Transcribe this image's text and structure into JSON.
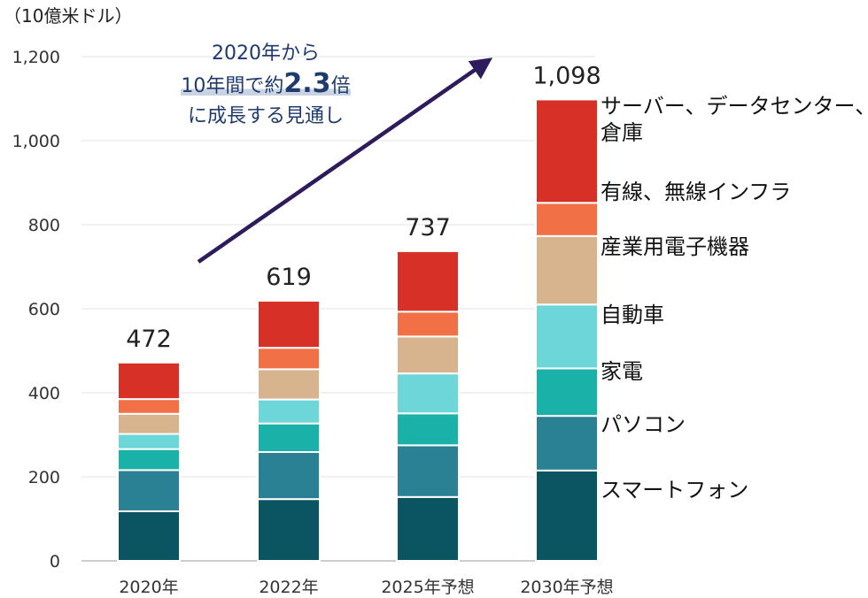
{
  "chart_data": {
    "type": "bar",
    "stacked": true,
    "unit_label": "（10億米ドル）",
    "categories": [
      "2020年",
      "2022年",
      "2025年予想",
      "2030年予想"
    ],
    "totals": [
      472,
      619,
      737,
      1098
    ],
    "total_labels": [
      "472",
      "619",
      "737",
      "1,098"
    ],
    "ylim": [
      0,
      1200
    ],
    "yticks": [
      0,
      200,
      400,
      600,
      800,
      1000,
      1200
    ],
    "ytick_labels": [
      "0",
      "200",
      "400",
      "600",
      "800",
      "1,000",
      "1,200"
    ],
    "grid": true,
    "legend_placement": "right",
    "series": [
      {
        "name": "スマートフォン",
        "color": "#0b5563",
        "values": [
          118,
          147,
          152,
          215
        ]
      },
      {
        "name": "パソコン",
        "color": "#2a8193",
        "values": [
          98,
          112,
          123,
          130
        ]
      },
      {
        "name": "家電",
        "color": "#1ab1a9",
        "values": [
          50,
          68,
          76,
          113
        ]
      },
      {
        "name": "自動車",
        "color": "#6dd6d8",
        "values": [
          36,
          57,
          95,
          152
        ]
      },
      {
        "name": "産業用電子機器",
        "color": "#d7b48d",
        "values": [
          48,
          72,
          88,
          163
        ]
      },
      {
        "name": "有線、無線インフラ",
        "color": "#f27045",
        "values": [
          35,
          51,
          59,
          79
        ]
      },
      {
        "name": "サーバー、データセンター、倉庫",
        "color": "#d73127",
        "values": [
          87,
          112,
          144,
          246
        ]
      }
    ],
    "legend_lines": [
      [
        "サーバー、データセンター、",
        "倉庫"
      ],
      [
        "有線、無線インフラ"
      ],
      [
        "産業用電子機器"
      ],
      [
        "自動車"
      ],
      [
        "家電"
      ],
      [
        "パソコン"
      ],
      [
        "スマートフォン"
      ]
    ],
    "arrow_color": "#2e1b5b",
    "annotation": {
      "line1": "2020年から",
      "line2_prefix": "10年間で約",
      "line2_big": "2.3",
      "line2_suffix": "倍",
      "line3": "に成長する見通し"
    }
  }
}
